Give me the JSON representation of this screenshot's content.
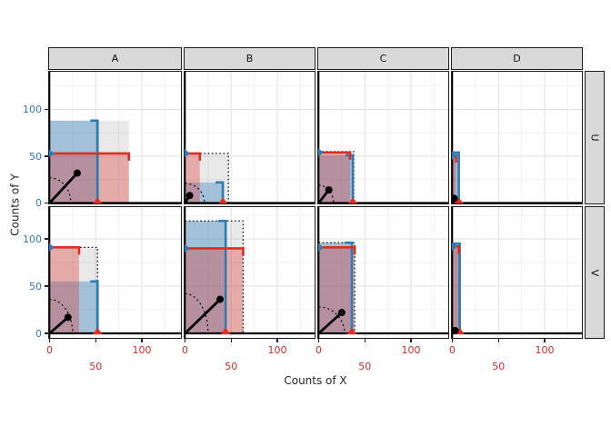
{
  "titles": {
    "x": "Counts of X",
    "y": "Counts of Y"
  },
  "facets": {
    "columns": [
      "A",
      "B",
      "C",
      "D"
    ],
    "rows": [
      "U",
      "V"
    ]
  },
  "axis": {
    "x_ticks": [
      {
        "v": 0,
        "dodge": 1
      },
      {
        "v": 50,
        "dodge": 2
      },
      {
        "v": 100,
        "dodge": 1
      }
    ],
    "y_ticks": [
      0,
      50,
      100
    ],
    "x_label_color": "#d62b2b",
    "y_label_color": "#3179b8"
  },
  "colors": {
    "strong_blue": "#2d7bb5",
    "strong_red": "#dc2e27",
    "blue_fill": "rgba(49,130,189,0.38)",
    "red_fill": "rgba(222,45,38,0.33)",
    "gray_fill": "rgba(125,125,125,0.17)",
    "grid_major": "#e2e2e2",
    "grid_minor": "#f0f0f0",
    "panel_border": "#1d1d1d",
    "strip_fill": "#d9d9d9",
    "black": "#000000"
  },
  "chart_data": {
    "type": "faceted-rect-comparison",
    "title": "",
    "xlabel": "Counts of X",
    "ylabel": "Counts of Y",
    "facet_columns": [
      "A",
      "B",
      "C",
      "D"
    ],
    "facet_rows": [
      "U",
      "V"
    ],
    "x_range": [
      0,
      143
    ],
    "y_range": [
      0,
      141
    ],
    "grid": "on",
    "legend": "none",
    "panels": [
      {
        "col": "A",
        "row": "U",
        "blue": {
          "w": 52,
          "h": 88
        },
        "red": {
          "w": 86,
          "h": 53
        },
        "gray": {
          "w": 86,
          "h": 88
        },
        "dotted": false,
        "point": {
          "x": 30,
          "y": 32
        },
        "arc": {
          "rx": 23,
          "ry": 27
        }
      },
      {
        "col": "B",
        "row": "U",
        "blue": {
          "w": 41,
          "h": 22
        },
        "red": {
          "w": 16,
          "h": 53
        },
        "gray": {
          "w": 47,
          "h": 53
        },
        "dotted": true,
        "point": {
          "x": 5,
          "y": 8
        },
        "arc": {
          "rx": 21,
          "ry": 21
        }
      },
      {
        "col": "C",
        "row": "U",
        "blue": {
          "w": 37,
          "h": 51
        },
        "red": {
          "w": 34,
          "h": 54
        },
        "gray": {
          "w": 38,
          "h": 55
        },
        "dotted": true,
        "point": {
          "x": 11,
          "y": 14
        },
        "arc": {
          "rx": 16,
          "ry": 19
        }
      },
      {
        "col": "D",
        "row": "U",
        "blue": {
          "w": 7,
          "h": 54
        },
        "red": {
          "w": 4,
          "h": 51
        },
        "gray": {
          "w": 8,
          "h": 55
        },
        "dotted": false,
        "point": {
          "x": 2,
          "y": 5
        },
        "arc": null
      },
      {
        "col": "A",
        "row": "V",
        "blue": {
          "w": 52,
          "h": 55
        },
        "red": {
          "w": 32,
          "h": 91
        },
        "gray": {
          "w": 52,
          "h": 91
        },
        "dotted": true,
        "point": {
          "x": 20,
          "y": 17
        },
        "arc": {
          "rx": 25,
          "ry": 36
        }
      },
      {
        "col": "B",
        "row": "V",
        "blue": {
          "w": 44,
          "h": 119
        },
        "red": {
          "w": 63,
          "h": 90
        },
        "gray": {
          "w": 63,
          "h": 119
        },
        "dotted": true,
        "point": {
          "x": 38,
          "y": 36
        },
        "arc": {
          "rx": 25,
          "ry": 42
        }
      },
      {
        "col": "C",
        "row": "V",
        "blue": {
          "w": 36,
          "h": 96
        },
        "red": {
          "w": 39,
          "h": 91
        },
        "gray": {
          "w": 39,
          "h": 96
        },
        "dotted": true,
        "point": {
          "x": 25,
          "y": 22
        },
        "arc": {
          "rx": 28,
          "ry": 28
        }
      },
      {
        "col": "D",
        "row": "V",
        "blue": {
          "w": 8,
          "h": 95
        },
        "red": {
          "w": 7,
          "h": 92
        },
        "gray": {
          "w": 8,
          "h": 95
        },
        "dotted": false,
        "point": {
          "x": 3,
          "y": 3
        },
        "arc": null
      }
    ]
  }
}
